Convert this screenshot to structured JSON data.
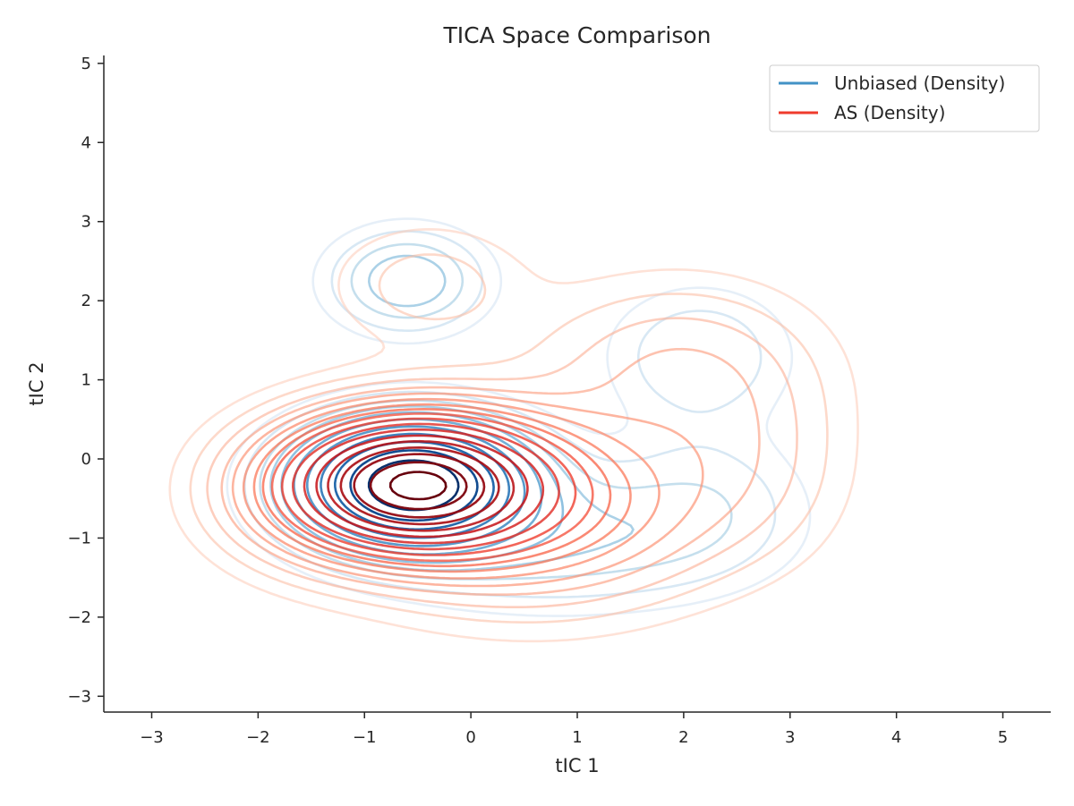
{
  "chart_data": {
    "type": "contour",
    "title": "TICA Space Comparison",
    "xlabel": "tIC 1",
    "ylabel": "tIC 2",
    "xlim": [
      -3.45,
      5.45
    ],
    "ylim": [
      -3.2,
      5.1
    ],
    "xticks": [
      -3,
      -2,
      -1,
      0,
      1,
      2,
      3,
      4,
      5
    ],
    "yticks": [
      -3,
      -2,
      -1,
      0,
      1,
      2,
      3,
      4,
      5
    ],
    "xtick_labels": [
      "−3",
      "−2",
      "−1",
      "0",
      "1",
      "2",
      "3",
      "4",
      "5"
    ],
    "ytick_labels": [
      "−3",
      "−2",
      "−1",
      "0",
      "1",
      "2",
      "3",
      "4",
      "5"
    ],
    "grid": false,
    "legend_position": "top-right",
    "series": [
      {
        "name": "Unbiased (Density)",
        "color": "#4292c6",
        "colormap": "Blues",
        "components": [
          {
            "mx": -0.55,
            "my": -0.32,
            "sx": 0.62,
            "sy": 0.46,
            "w": 1.0
          },
          {
            "mx": -0.6,
            "my": 2.25,
            "sx": 0.45,
            "sy": 0.4,
            "w": 0.14
          },
          {
            "mx": 2.15,
            "my": 1.3,
            "sx": 0.55,
            "sy": 0.55,
            "w": 0.07
          },
          {
            "mx": 0.8,
            "my": -1.0,
            "sx": 1.1,
            "sy": 0.55,
            "w": 0.1
          },
          {
            "mx": 2.2,
            "my": -0.5,
            "sx": 0.6,
            "sy": 0.6,
            "w": 0.05
          }
        ],
        "levels": [
          0.02,
          0.04,
          0.07,
          0.1,
          0.14,
          0.2,
          0.28,
          0.38,
          0.5,
          0.64,
          0.8
        ]
      },
      {
        "name": "AS (Density)",
        "color": "#ef3b2c",
        "colormap": "Reds",
        "components": [
          {
            "mx": -0.55,
            "my": -0.32,
            "sx": 0.75,
            "sy": 0.52,
            "w": 1.0
          },
          {
            "mx": 0.6,
            "my": -0.6,
            "sx": 1.05,
            "sy": 0.75,
            "w": 0.22
          },
          {
            "mx": 1.9,
            "my": 1.15,
            "sx": 0.85,
            "sy": 0.7,
            "w": 0.08
          },
          {
            "mx": -0.4,
            "my": 2.2,
            "sx": 0.6,
            "sy": 0.5,
            "w": 0.045
          },
          {
            "mx": 2.6,
            "my": 0.0,
            "sx": 0.6,
            "sy": 0.8,
            "w": 0.05
          },
          {
            "mx": -1.6,
            "my": -0.5,
            "sx": 0.6,
            "sy": 0.6,
            "w": 0.05
          }
        ],
        "levels": [
          0.015,
          0.03,
          0.05,
          0.075,
          0.1,
          0.13,
          0.165,
          0.2,
          0.24,
          0.29,
          0.35,
          0.42,
          0.5,
          0.58,
          0.67,
          0.76,
          0.86,
          0.95
        ]
      }
    ]
  }
}
